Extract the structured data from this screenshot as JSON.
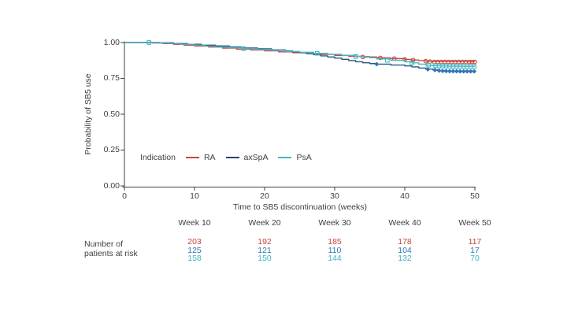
{
  "figure": {
    "background": "#ffffff",
    "text_color": "#3f3f3f",
    "axis_color": "#404040"
  },
  "axes": {
    "y_label": "Probability of SB5 use",
    "x_label": "Time to SB5 discontinuation (weeks)",
    "y_ticks": [
      "1.00",
      "0.75",
      "0.50",
      "0.25",
      "0.00"
    ],
    "x_ticks": [
      "0",
      "10",
      "20",
      "30",
      "40",
      "50"
    ]
  },
  "legend": {
    "title": "Indication",
    "items": [
      {
        "label": "RA",
        "color": "#c5473c"
      },
      {
        "label": "axSpA",
        "color": "#23456f"
      },
      {
        "label": "PsA",
        "color": "#47b5c2"
      }
    ]
  },
  "chart_data": {
    "type": "line",
    "subtype": "kaplan-meier-step",
    "title": "",
    "xlabel": "Time to SB5 discontinuation (weeks)",
    "ylabel": "Probability of SB5 use",
    "xlim": [
      0,
      50
    ],
    "ylim": [
      0.0,
      1.0
    ],
    "x_tick_values": [
      0,
      10,
      20,
      30,
      40,
      50
    ],
    "y_tick_values": [
      1.0,
      0.75,
      0.5,
      0.25,
      0.0
    ],
    "grid": false,
    "legend_position": "inside-lower-left",
    "series": [
      {
        "name": "RA",
        "color": "#c5473c",
        "marker": "circle",
        "marker_color": "#c5473c",
        "steps": [
          [
            0,
            1.0
          ],
          [
            4,
            0.997
          ],
          [
            5.5,
            0.993
          ],
          [
            7,
            0.988
          ],
          [
            8.5,
            0.982
          ],
          [
            10,
            0.976
          ],
          [
            12,
            0.969
          ],
          [
            14,
            0.961
          ],
          [
            16,
            0.954
          ],
          [
            18,
            0.948
          ],
          [
            20,
            0.942
          ],
          [
            22,
            0.935
          ],
          [
            24,
            0.929
          ],
          [
            26,
            0.923
          ],
          [
            28,
            0.917
          ],
          [
            30,
            0.91
          ],
          [
            32,
            0.904
          ],
          [
            34,
            0.899
          ],
          [
            36,
            0.893
          ],
          [
            38,
            0.888
          ],
          [
            40,
            0.882
          ],
          [
            41,
            0.878
          ],
          [
            42,
            0.874
          ],
          [
            43,
            0.87
          ],
          [
            44,
            0.867
          ],
          [
            50,
            0.865
          ]
        ],
        "censors": [
          [
            34,
            0.899
          ],
          [
            36.5,
            0.893
          ],
          [
            38.5,
            0.888
          ],
          [
            40,
            0.882
          ],
          [
            41.2,
            0.878
          ],
          [
            43,
            0.87
          ],
          [
            43.6,
            0.867
          ],
          [
            44.2,
            0.865
          ],
          [
            44.7,
            0.865
          ],
          [
            45.2,
            0.865
          ],
          [
            45.7,
            0.865
          ],
          [
            46.2,
            0.865
          ],
          [
            46.7,
            0.865
          ],
          [
            47.2,
            0.865
          ],
          [
            47.7,
            0.865
          ],
          [
            48.2,
            0.865
          ],
          [
            48.7,
            0.865
          ],
          [
            49.2,
            0.865
          ],
          [
            49.6,
            0.865
          ],
          [
            50,
            0.865
          ]
        ]
      },
      {
        "name": "axSpA",
        "color": "#2a5784",
        "marker": "diamond",
        "marker_color": "#2e75b6",
        "steps": [
          [
            0,
            1.0
          ],
          [
            5,
            0.998
          ],
          [
            7,
            0.993
          ],
          [
            9,
            0.988
          ],
          [
            11,
            0.982
          ],
          [
            13,
            0.976
          ],
          [
            15,
            0.969
          ],
          [
            17,
            0.962
          ],
          [
            19,
            0.956
          ],
          [
            21,
            0.949
          ],
          [
            23,
            0.941
          ],
          [
            24,
            0.935
          ],
          [
            25,
            0.929
          ],
          [
            26,
            0.922
          ],
          [
            27,
            0.915
          ],
          [
            28,
            0.907
          ],
          [
            29,
            0.899
          ],
          [
            30,
            0.891
          ],
          [
            31,
            0.883
          ],
          [
            32,
            0.874
          ],
          [
            33,
            0.866
          ],
          [
            34,
            0.859
          ],
          [
            35,
            0.853
          ],
          [
            36,
            0.849
          ],
          [
            38,
            0.843
          ],
          [
            40,
            0.837
          ],
          [
            41,
            0.83
          ],
          [
            42,
            0.822
          ],
          [
            43,
            0.815
          ],
          [
            44,
            0.809
          ],
          [
            45,
            0.804
          ],
          [
            46,
            0.801
          ],
          [
            50,
            0.799
          ]
        ],
        "censors": [
          [
            36,
            0.849
          ],
          [
            43.3,
            0.813
          ],
          [
            44.3,
            0.808
          ],
          [
            44.9,
            0.804
          ],
          [
            45.4,
            0.802
          ],
          [
            45.9,
            0.801
          ],
          [
            46.4,
            0.8
          ],
          [
            46.9,
            0.8
          ],
          [
            47.4,
            0.8
          ],
          [
            47.9,
            0.799
          ],
          [
            48.4,
            0.799
          ],
          [
            48.9,
            0.799
          ],
          [
            49.4,
            0.799
          ],
          [
            49.9,
            0.799
          ]
        ]
      },
      {
        "name": "PsA",
        "color": "#47b5c2",
        "marker": "square",
        "marker_color": "#47b5c2",
        "steps": [
          [
            0,
            1.0
          ],
          [
            5,
            0.997
          ],
          [
            6.5,
            0.994
          ],
          [
            8,
            0.988
          ],
          [
            10,
            0.982
          ],
          [
            11.5,
            0.975
          ],
          [
            13,
            0.969
          ],
          [
            15,
            0.963
          ],
          [
            17,
            0.957
          ],
          [
            19,
            0.951
          ],
          [
            21,
            0.945
          ],
          [
            23,
            0.938
          ],
          [
            25,
            0.932
          ],
          [
            27,
            0.925
          ],
          [
            29,
            0.918
          ],
          [
            31,
            0.911
          ],
          [
            33,
            0.903
          ],
          [
            35,
            0.894
          ],
          [
            36,
            0.886
          ],
          [
            38,
            0.876
          ],
          [
            40,
            0.866
          ],
          [
            41,
            0.858
          ],
          [
            42,
            0.849
          ],
          [
            43,
            0.842
          ],
          [
            44,
            0.838
          ],
          [
            45,
            0.836
          ],
          [
            46,
            0.835
          ],
          [
            48,
            0.834
          ],
          [
            50,
            0.833
          ]
        ],
        "censors": [
          [
            3.5,
            1.0
          ],
          [
            17,
            0.957
          ],
          [
            27.5,
            0.925
          ],
          [
            33,
            0.903
          ],
          [
            37.5,
            0.876
          ],
          [
            41,
            0.858
          ],
          [
            43.4,
            0.842
          ],
          [
            44.4,
            0.838
          ],
          [
            44.9,
            0.837
          ],
          [
            45.4,
            0.836
          ],
          [
            45.9,
            0.836
          ],
          [
            46.4,
            0.835
          ],
          [
            46.9,
            0.834
          ],
          [
            47.4,
            0.834
          ],
          [
            47.9,
            0.834
          ],
          [
            48.4,
            0.834
          ],
          [
            48.9,
            0.834
          ],
          [
            49.4,
            0.833
          ],
          [
            49.9,
            0.833
          ]
        ]
      }
    ]
  },
  "risk_table": {
    "row_label_line1": "Number of",
    "row_label_line2": "patients at risk",
    "row_colors": [
      "#c5473c",
      "#2e74b5",
      "#47b5c2"
    ],
    "columns": [
      {
        "header": "Week 10",
        "values": [
          "203",
          "125",
          "158"
        ]
      },
      {
        "header": "Week 20",
        "values": [
          "192",
          "121",
          "150"
        ]
      },
      {
        "header": "Week 30",
        "values": [
          "185",
          "110",
          "144"
        ]
      },
      {
        "header": "Week 40",
        "values": [
          "178",
          "104",
          "132"
        ]
      },
      {
        "header": "Week 50",
        "values": [
          "117",
          "17",
          "70"
        ]
      }
    ]
  }
}
